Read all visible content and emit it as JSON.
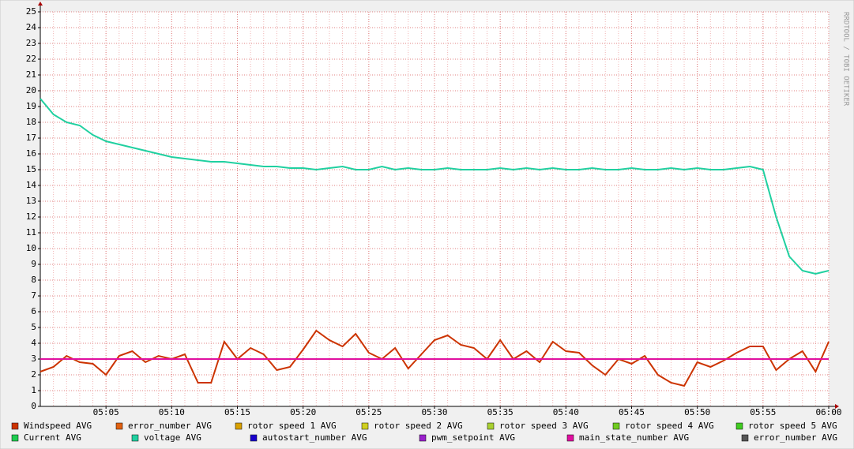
{
  "chart_data": {
    "type": "line",
    "watermark": "RRDTOOL / TOBI OETIKER",
    "x": [
      "05:00",
      "05:01",
      "05:02",
      "05:03",
      "05:04",
      "05:05",
      "05:06",
      "05:07",
      "05:08",
      "05:09",
      "05:10",
      "05:11",
      "05:12",
      "05:13",
      "05:14",
      "05:15",
      "05:16",
      "05:17",
      "05:18",
      "05:19",
      "05:20",
      "05:21",
      "05:22",
      "05:23",
      "05:24",
      "05:25",
      "05:26",
      "05:27",
      "05:28",
      "05:29",
      "05:30",
      "05:31",
      "05:32",
      "05:33",
      "05:34",
      "05:35",
      "05:36",
      "05:37",
      "05:38",
      "05:39",
      "05:40",
      "05:41",
      "05:42",
      "05:43",
      "05:44",
      "05:45",
      "05:46",
      "05:47",
      "05:48",
      "05:49",
      "05:50",
      "05:51",
      "05:52",
      "05:53",
      "05:54",
      "05:55",
      "05:56",
      "05:57",
      "05:58",
      "05:59",
      "06:00"
    ],
    "xticks": [
      "05:05",
      "05:10",
      "05:15",
      "05:20",
      "05:25",
      "05:30",
      "05:35",
      "05:40",
      "05:45",
      "05:50",
      "05:55",
      "06:00"
    ],
    "ylim": [
      0,
      25
    ],
    "yticks": [
      0,
      1,
      2,
      3,
      4,
      5,
      6,
      7,
      8,
      9,
      10,
      11,
      12,
      13,
      14,
      15,
      16,
      17,
      18,
      19,
      20,
      21,
      22,
      23,
      24,
      25
    ],
    "grid": true,
    "series": [
      {
        "name": "Windspeed AVG",
        "color": "#cc3300",
        "values": [
          2.2,
          2.5,
          3.2,
          2.8,
          2.7,
          2.0,
          3.2,
          3.5,
          2.8,
          3.2,
          3.0,
          3.3,
          1.5,
          1.5,
          4.1,
          3.0,
          3.7,
          3.3,
          2.3,
          2.5,
          3.6,
          4.8,
          4.2,
          3.8,
          4.6,
          3.4,
          3.0,
          3.7,
          2.4,
          3.3,
          4.2,
          4.5,
          3.9,
          3.7,
          3.0,
          4.2,
          3.0,
          3.5,
          2.8,
          4.1,
          3.5,
          3.4,
          2.6,
          2.0,
          3.0,
          2.7,
          3.2,
          2.0,
          1.5,
          1.3,
          2.8,
          2.5,
          2.9,
          3.4,
          3.8,
          3.8,
          2.3,
          3.0,
          3.5,
          2.2,
          4.1
        ]
      },
      {
        "name": "error_number AVG",
        "color": "#e06010"
      },
      {
        "name": "rotor speed 1 AVG",
        "color": "#d9a000"
      },
      {
        "name": "rotor speed 2 AVG",
        "color": "#d0d020"
      },
      {
        "name": "rotor speed 3 AVG",
        "color": "#a8d030"
      },
      {
        "name": "rotor speed 4 AVG",
        "color": "#70cc20"
      },
      {
        "name": "rotor speed 5 AVG",
        "color": "#40cc20"
      },
      {
        "name": "Current AVG",
        "color": "#20cc50"
      },
      {
        "name": "voltage AVG",
        "color": "#20d0a0",
        "values": [
          19.5,
          18.5,
          18.0,
          17.8,
          17.2,
          16.8,
          16.6,
          16.4,
          16.2,
          16.0,
          15.8,
          15.7,
          15.6,
          15.5,
          15.5,
          15.4,
          15.3,
          15.2,
          15.2,
          15.1,
          15.1,
          15.0,
          15.1,
          15.2,
          15.0,
          15.0,
          15.2,
          15.0,
          15.1,
          15.0,
          15.0,
          15.1,
          15.0,
          15.0,
          15.0,
          15.1,
          15.0,
          15.1,
          15.0,
          15.1,
          15.0,
          15.0,
          15.1,
          15.0,
          15.0,
          15.1,
          15.0,
          15.0,
          15.1,
          15.0,
          15.1,
          15.0,
          15.0,
          15.1,
          15.2,
          15.0,
          12.0,
          9.5,
          8.6,
          8.4,
          8.6
        ]
      },
      {
        "name": "autostart_number AVG",
        "color": "#1a00cc"
      },
      {
        "name": "pwm_setpoint AVG",
        "color": "#9a20cc"
      },
      {
        "name": "main_state_number AVG",
        "color": "#e010a0",
        "values": [
          3,
          3,
          3,
          3,
          3,
          3,
          3,
          3,
          3,
          3,
          3,
          3,
          3,
          3,
          3,
          3,
          3,
          3,
          3,
          3,
          3,
          3,
          3,
          3,
          3,
          3,
          3,
          3,
          3,
          3,
          3,
          3,
          3,
          3,
          3,
          3,
          3,
          3,
          3,
          3,
          3,
          3,
          3,
          3,
          3,
          3,
          3,
          3,
          3,
          3,
          3,
          3,
          3,
          3,
          3,
          3,
          3,
          3,
          3,
          3,
          3
        ]
      },
      {
        "name": "error_number AVG",
        "color": "#555555"
      }
    ]
  }
}
